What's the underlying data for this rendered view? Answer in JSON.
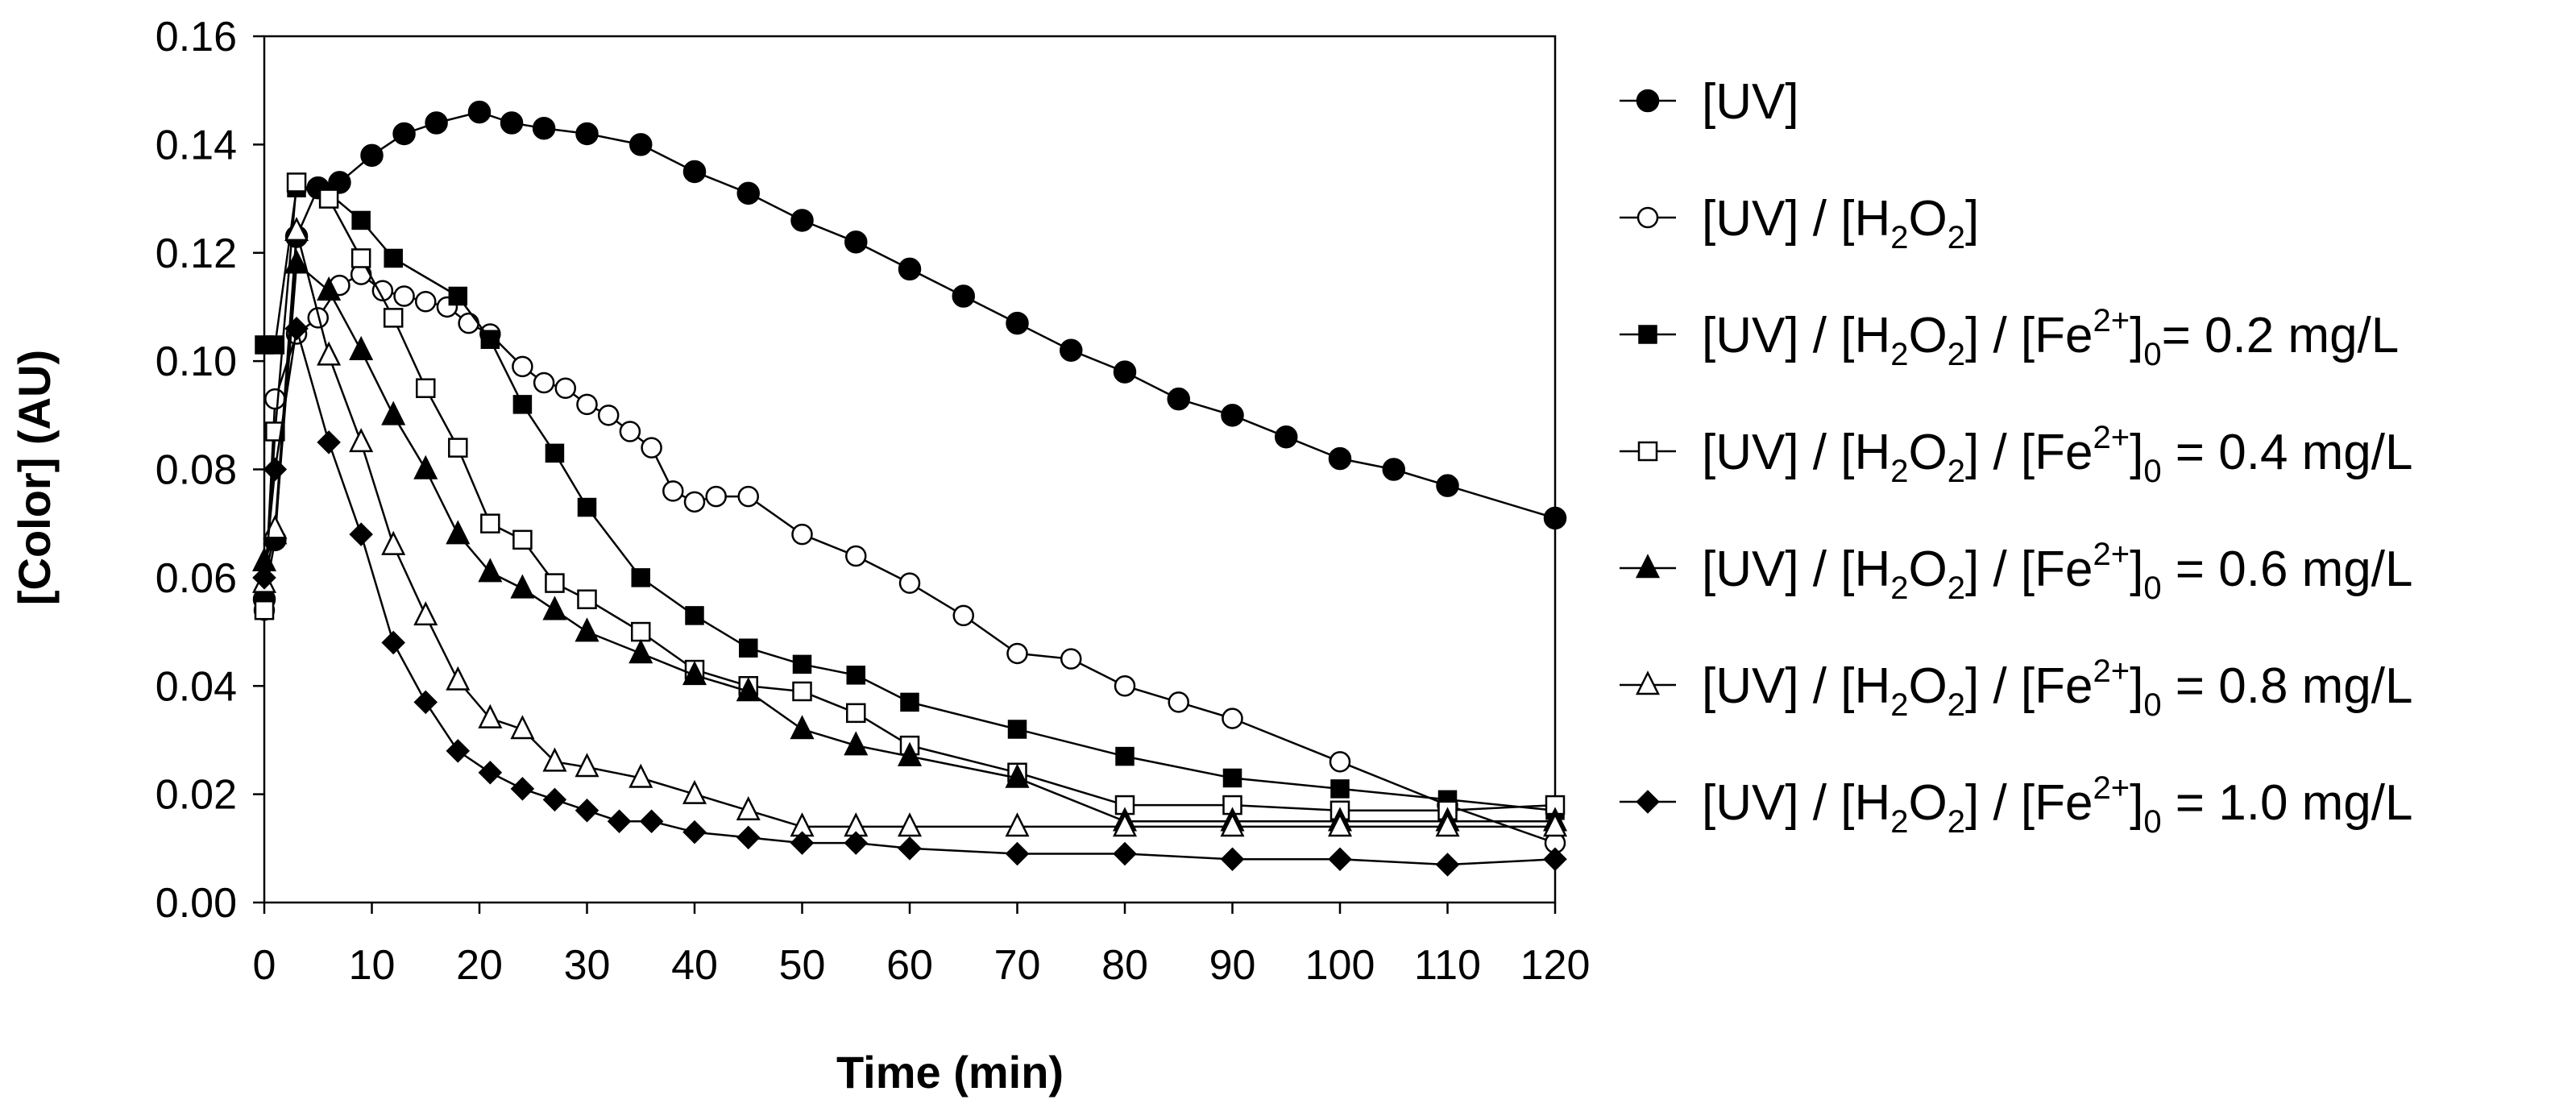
{
  "chart_data": {
    "type": "line",
    "title": "",
    "xlabel": "Time (min)",
    "ylabel": "[Color] (AU)",
    "xlim": [
      0,
      120
    ],
    "ylim": [
      0,
      0.16
    ],
    "xticks": [
      "0",
      "10",
      "20",
      "30",
      "40",
      "50",
      "60",
      "70",
      "80",
      "90",
      "100",
      "110",
      "120"
    ],
    "yticks": [
      "0.00",
      "0.02",
      "0.04",
      "0.06",
      "0.08",
      "0.10",
      "0.12",
      "0.14",
      "0.16"
    ],
    "grid": false,
    "legend_position": "right",
    "series": [
      {
        "name": "[UV]",
        "legend": {
          "pre": "[UV]"
        },
        "marker": "circle",
        "filled": true,
        "x": [
          0,
          1,
          3,
          5,
          7,
          10,
          13,
          16,
          20,
          23,
          26,
          30,
          35,
          40,
          45,
          50,
          55,
          60,
          65,
          70,
          75,
          80,
          85,
          90,
          95,
          100,
          105,
          110,
          120
        ],
        "y": [
          0.056,
          0.067,
          0.123,
          0.132,
          0.133,
          0.138,
          0.142,
          0.144,
          0.146,
          0.144,
          0.143,
          0.142,
          0.14,
          0.135,
          0.131,
          0.126,
          0.122,
          0.117,
          0.112,
          0.107,
          0.102,
          0.098,
          0.093,
          0.09,
          0.086,
          0.082,
          0.08,
          0.077,
          0.071
        ]
      },
      {
        "name": "[UV] / [H2O2]",
        "legend": {
          "pre": "[UV] / [H",
          "sub1": "2",
          "mid": "O",
          "sub2": "2",
          "post": "]"
        },
        "marker": "circle",
        "filled": false,
        "x": [
          0,
          1,
          3,
          5,
          7,
          9,
          11,
          13,
          15,
          17,
          19,
          21,
          24,
          26,
          28,
          30,
          32,
          34,
          36,
          38,
          40,
          42,
          45,
          50,
          55,
          60,
          65,
          70,
          75,
          80,
          85,
          90,
          100,
          110,
          120
        ],
        "y": [
          0.054,
          0.093,
          0.105,
          0.108,
          0.114,
          0.116,
          0.113,
          0.112,
          0.111,
          0.11,
          0.107,
          0.105,
          0.099,
          0.096,
          0.095,
          0.092,
          0.09,
          0.087,
          0.084,
          0.076,
          0.074,
          0.075,
          0.075,
          0.068,
          0.064,
          0.059,
          0.053,
          0.046,
          0.045,
          0.04,
          0.037,
          0.034,
          0.026,
          0.018,
          0.011
        ]
      },
      {
        "name": "[UV] / [H2O2] / [Fe2+]0= 0.2 mg/L",
        "legend": {
          "pre": "[UV] / [H",
          "sub1": "2",
          "mid": "O",
          "sub2": "2",
          "mid2": "] / [Fe",
          "sup": "2+",
          "mid3": "]",
          "sub3": "0",
          "post": "= 0.2 mg/L"
        },
        "marker": "square",
        "filled": true,
        "x": [
          0,
          1,
          3,
          6,
          9,
          12,
          18,
          21,
          24,
          27,
          30,
          35,
          40,
          45,
          50,
          55,
          60,
          70,
          80,
          90,
          100,
          110,
          120
        ],
        "y": [
          0.103,
          0.103,
          0.132,
          0.131,
          0.126,
          0.119,
          0.112,
          0.104,
          0.092,
          0.083,
          0.073,
          0.06,
          0.053,
          0.047,
          0.044,
          0.042,
          0.037,
          0.032,
          0.027,
          0.023,
          0.021,
          0.019,
          0.017
        ]
      },
      {
        "name": "[UV] / [H2O2] / [Fe2+]0 = 0.4 mg/L",
        "legend": {
          "pre": "[UV] / [H",
          "sub1": "2",
          "mid": "O",
          "sub2": "2",
          "mid2": "] / [Fe",
          "sup": "2+",
          "mid3": "]",
          "sub3": "0",
          "post": " = 0.4 mg/L"
        },
        "marker": "square",
        "filled": false,
        "x": [
          0,
          1,
          3,
          6,
          9,
          12,
          15,
          18,
          21,
          24,
          27,
          30,
          35,
          40,
          45,
          50,
          55,
          60,
          70,
          80,
          90,
          100,
          110,
          120
        ],
        "y": [
          0.054,
          0.087,
          0.133,
          0.13,
          0.119,
          0.108,
          0.095,
          0.084,
          0.07,
          0.067,
          0.059,
          0.056,
          0.05,
          0.043,
          0.04,
          0.039,
          0.035,
          0.029,
          0.024,
          0.018,
          0.018,
          0.017,
          0.017,
          0.018
        ]
      },
      {
        "name": "[UV] / [H2O2] / [Fe2+]0 = 0.6 mg/L",
        "legend": {
          "pre": "[UV] / [H",
          "sub1": "2",
          "mid": "O",
          "sub2": "2",
          "mid2": "] / [Fe",
          "sup": "2+",
          "mid3": "]",
          "sub3": "0",
          "post": " = 0.6 mg/L"
        },
        "marker": "triangle",
        "filled": true,
        "x": [
          0,
          1,
          3,
          6,
          9,
          12,
          15,
          18,
          21,
          24,
          27,
          30,
          35,
          40,
          45,
          50,
          55,
          60,
          70,
          80,
          90,
          100,
          110,
          120
        ],
        "y": [
          0.063,
          0.068,
          0.118,
          0.113,
          0.102,
          0.09,
          0.08,
          0.068,
          0.061,
          0.058,
          0.054,
          0.05,
          0.046,
          0.042,
          0.039,
          0.032,
          0.029,
          0.027,
          0.023,
          0.015,
          0.015,
          0.015,
          0.015,
          0.015
        ]
      },
      {
        "name": "[UV] / [H2O2] / [Fe2+]0 = 0.8 mg/L",
        "legend": {
          "pre": "[UV] / [H",
          "sub1": "2",
          "mid": "O",
          "sub2": "2",
          "mid2": "] / [Fe",
          "sup": "2+",
          "mid3": "]",
          "sub3": "0",
          "post": " = 0.8 mg/L"
        },
        "marker": "triangle",
        "filled": false,
        "x": [
          0,
          1,
          3,
          6,
          9,
          12,
          15,
          18,
          21,
          24,
          27,
          30,
          35,
          40,
          45,
          50,
          55,
          60,
          70,
          80,
          90,
          100,
          110,
          120
        ],
        "y": [
          0.059,
          0.069,
          0.124,
          0.101,
          0.085,
          0.066,
          0.053,
          0.041,
          0.034,
          0.032,
          0.026,
          0.025,
          0.023,
          0.02,
          0.017,
          0.014,
          0.014,
          0.014,
          0.014,
          0.014,
          0.014,
          0.014,
          0.014,
          0.014
        ]
      },
      {
        "name": "[UV] / [H2O2] / [Fe2+]0 = 1.0 mg/L",
        "legend": {
          "pre": "[UV] / [H",
          "sub1": "2",
          "mid": "O",
          "sub2": "2",
          "mid2": "] / [Fe",
          "sup": "2+",
          "mid3": "]",
          "sub3": "0",
          "post": " = 1.0 mg/L"
        },
        "marker": "diamond",
        "filled": true,
        "x": [
          0,
          1,
          3,
          6,
          9,
          12,
          15,
          18,
          21,
          24,
          27,
          30,
          33,
          36,
          40,
          45,
          50,
          55,
          60,
          70,
          80,
          90,
          100,
          110,
          120
        ],
        "y": [
          0.06,
          0.08,
          0.106,
          0.085,
          0.068,
          0.048,
          0.037,
          0.028,
          0.024,
          0.021,
          0.019,
          0.017,
          0.015,
          0.015,
          0.013,
          0.012,
          0.011,
          0.011,
          0.01,
          0.009,
          0.009,
          0.008,
          0.008,
          0.007,
          0.008
        ]
      }
    ]
  }
}
